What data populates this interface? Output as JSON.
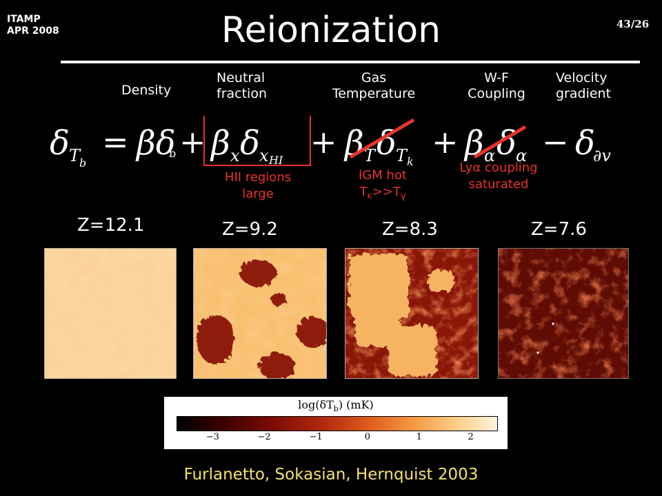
{
  "header": {
    "line1": "ITAMP",
    "line2": "APR 2008",
    "slide_number": "43/26"
  },
  "title": "Reionization",
  "terms": {
    "density": "Density",
    "neutral_1": "Neutral",
    "neutral_2": "fraction",
    "gas_1": "Gas",
    "gas_2": "Temperature",
    "wf_1": "W-F",
    "wf_2": "Coupling",
    "vel_1": "Velocity",
    "vel_2": "gradient"
  },
  "equation": {
    "lhs": "δ",
    "lhs_sub": "T",
    "lhs_subsub": "b",
    "equals": "=",
    "t1": "βδ",
    "t1_sub": "b",
    "plus": "+",
    "t2": "β",
    "t2_sub": "x",
    "t2b": "δ",
    "t2b_sub": "x",
    "t2b_subsub": "HI",
    "t3": "β",
    "t3_sub": "T",
    "t3b": "δ",
    "t3b_sub": "T",
    "t3b_subsub": "k",
    "t4": "β",
    "t4_sub": "α",
    "t4b": "δ",
    "t4b_sub": "α",
    "minus": "−",
    "t5": "δ",
    "t5_sub": "∂v"
  },
  "notes": {
    "hii_1": "HII regions",
    "hii_2": "large",
    "igm_1": "IGM hot",
    "igm_T": "T",
    "igm_K": "K",
    "igm_gg": ">>T",
    "igm_gamma": "γ",
    "lya_1": "Lyα coupling",
    "lya_2": "saturated"
  },
  "redshifts": [
    "Z=12.1",
    "Z=9.2",
    "Z=8.3",
    "Z=7.6"
  ],
  "colorbar": {
    "title": "log(δT",
    "title_sub": "b",
    "title_end": ") (mK)",
    "ticks": [
      "−3",
      "−2",
      "−1",
      "0",
      "1",
      "2"
    ],
    "tick_values": [
      -3,
      -2,
      -1,
      0,
      1,
      2
    ],
    "range": [
      -3.7,
      2.5
    ]
  },
  "citation": "Furlanetto, Sokasian, Hernquist 2003",
  "colors": {
    "accent_red": "#e8332c",
    "citation_yellow": "#f5e36a"
  }
}
